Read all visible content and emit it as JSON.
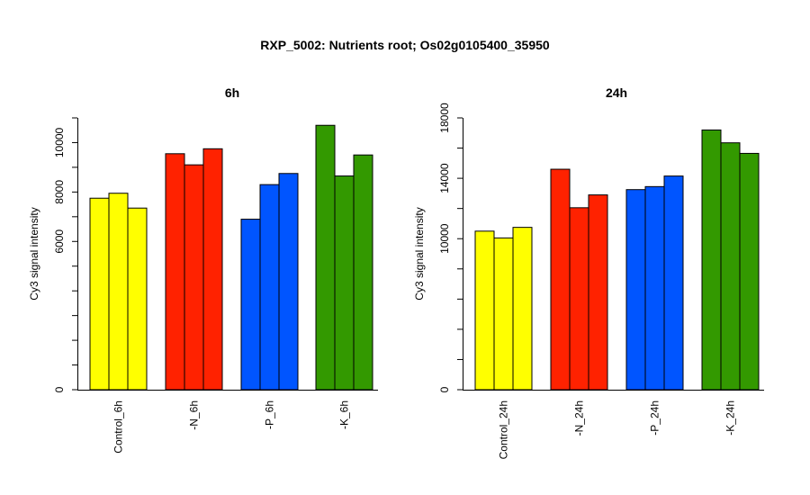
{
  "title": "RXP_5002: Nutrients root; Os02g0105400_35950",
  "chart_data": [
    {
      "type": "bar",
      "title": "6h",
      "ylabel": "Cy3 signal intensity",
      "ylim": [
        0,
        11000
      ],
      "yticks": [
        0,
        6000,
        8000,
        10000
      ],
      "yticks_label": [
        "0",
        "6000",
        "8000",
        "10000"
      ],
      "groups": [
        {
          "label": "Control_6h",
          "color": "#ffff00",
          "values": [
            7750,
            7950,
            7350
          ]
        },
        {
          "label": "-N_6h",
          "color": "#ff2200",
          "values": [
            9550,
            9100,
            9750
          ]
        },
        {
          "label": "-P_6h",
          "color": "#0055ff",
          "values": [
            6900,
            8300,
            8750
          ]
        },
        {
          "label": "-K_6h",
          "color": "#339900",
          "values": [
            10700,
            8650,
            9500
          ]
        }
      ]
    },
    {
      "type": "bar",
      "title": "24h",
      "ylabel": "Cy3 signal intensity",
      "ylim": [
        0,
        18000
      ],
      "yticks": [
        0,
        10000,
        14000,
        18000
      ],
      "yticks_label": [
        "0",
        "10000",
        "14000",
        "18000"
      ],
      "groups": [
        {
          "label": "Control_24h",
          "color": "#ffff00",
          "values": [
            10500,
            10050,
            10750
          ]
        },
        {
          "label": "-N_24h",
          "color": "#ff2200",
          "values": [
            14600,
            12050,
            12900
          ]
        },
        {
          "label": "-P_24h",
          "color": "#0055ff",
          "values": [
            13250,
            13450,
            14150
          ]
        },
        {
          "label": "-K_24h",
          "color": "#339900",
          "values": [
            17200,
            16350,
            15650
          ]
        }
      ]
    }
  ]
}
